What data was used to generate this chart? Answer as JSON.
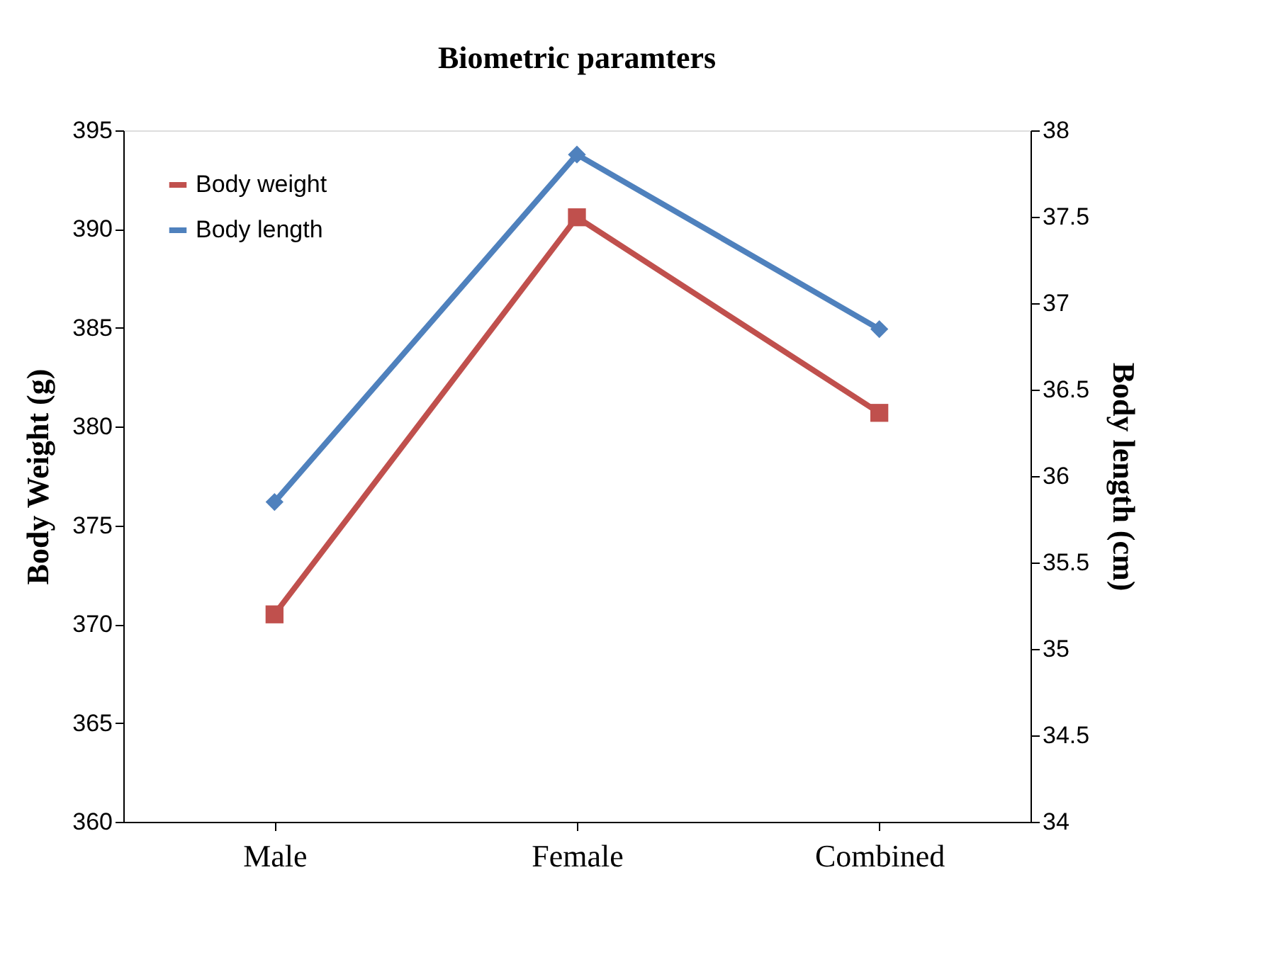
{
  "chart_data": {
    "type": "line",
    "title": "Biometric paramters",
    "categories": [
      "Male",
      "Female",
      "Combined"
    ],
    "ylabel": "Body Weight (g)",
    "y2label": "Body length (cm)",
    "ylim": [
      360,
      395
    ],
    "yticks": [
      360,
      365,
      370,
      375,
      380,
      385,
      390,
      395
    ],
    "y2lim": [
      34,
      38
    ],
    "y2ticks": [
      34,
      34.5,
      35,
      35.5,
      36,
      36.5,
      37,
      37.5,
      38
    ],
    "series": [
      {
        "name": "Body weight",
        "color": "#c0504d",
        "values": [
          370.5,
          390.6,
          380.7
        ],
        "marker": "square"
      },
      {
        "name": "Body length",
        "color": "#4f81bd",
        "values": [
          35.85,
          37.86,
          36.85
        ],
        "axis": "y2",
        "marker": "diamond"
      }
    ],
    "legend": "top left",
    "grid": false,
    "line_style": "solid"
  }
}
